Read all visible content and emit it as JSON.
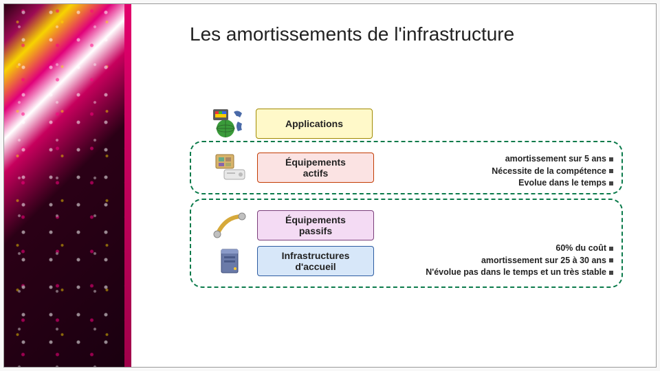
{
  "title": "Les amortissements de l'infrastructure",
  "layers": {
    "applications": {
      "label": "Applications",
      "box_bg": "#fff9c9",
      "box_border": "#a08a00"
    },
    "actifs": {
      "label": "Équipements\nactifs",
      "box_bg": "#fbe3e3",
      "box_border": "#c23a00"
    },
    "passifs": {
      "label": "Équipements\npassifs",
      "box_bg": "#f4dbf4",
      "box_border": "#7a3d7a"
    },
    "infra": {
      "label": "Infrastructures\nd'accueil",
      "box_bg": "#d7e7f9",
      "box_border": "#2b5aa0"
    }
  },
  "group_top": {
    "border_color": "#0a7a4a",
    "bullets": [
      "amortissement sur 5 ans",
      "Nécessite de la compétence",
      "Evolue dans le temps"
    ]
  },
  "group_bot": {
    "border_color": "#0a7a4a",
    "bullets": [
      "60% du coût",
      "amortissement sur 25 à 30 ans",
      "N'évolue pas dans le temps et un très stable"
    ]
  }
}
